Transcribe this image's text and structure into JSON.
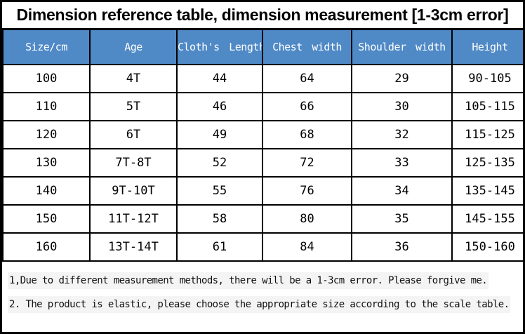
{
  "title": "Dimension reference table, dimension measurement [1-3cm error]",
  "chart_data": {
    "type": "table",
    "title": "Dimension reference table, dimension measurement [1-3cm error]",
    "columns": [
      "Size/cm",
      "Age",
      "Cloth's Length",
      "Chest width",
      "Shoulder width",
      "Height"
    ],
    "rows": [
      [
        "100",
        "4T",
        "44",
        "64",
        "29",
        "90-105"
      ],
      [
        "110",
        "5T",
        "46",
        "66",
        "30",
        "105-115"
      ],
      [
        "120",
        "6T",
        "49",
        "68",
        "32",
        "115-125"
      ],
      [
        "130",
        "7T-8T",
        "52",
        "72",
        "33",
        "125-135"
      ],
      [
        "140",
        "9T-10T",
        "55",
        "76",
        "34",
        "135-145"
      ],
      [
        "150",
        "11T-12T",
        "58",
        "80",
        "35",
        "145-155"
      ],
      [
        "160",
        "13T-14T",
        "61",
        "84",
        "36",
        "150-160"
      ]
    ]
  },
  "notes": [
    "1,Due to different measurement methods, there will be a 1-3cm error. Please forgive me.",
    "2. The product is elastic, please choose the appropriate size according to the scale table."
  ],
  "colors": {
    "header_bg": "#4f89c6",
    "header_text": "#ffffff",
    "border": "#000000",
    "note_highlight": "#f4f4f4"
  }
}
